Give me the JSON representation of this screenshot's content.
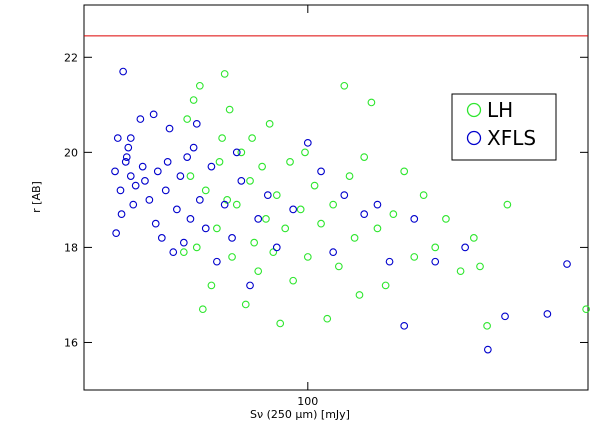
{
  "chart_data": {
    "type": "scatter",
    "x_label": "Sν (250 μm) [mJy]",
    "y_label": "r [AB]",
    "xlog": true,
    "xlim": [
      20,
      750
    ],
    "ylim": [
      15,
      23.1
    ],
    "xticks": [
      100
    ],
    "yticks": [
      16,
      18,
      20,
      22
    ],
    "reference_line": 22.45,
    "reference_line_color": "#dd0000",
    "legend": "upper right",
    "series": [
      {
        "name": "LH",
        "color": "#2ee62e",
        "x": [
          42,
          44,
          46,
          48,
          50,
          52,
          54,
          56,
          58,
          60,
          62,
          64,
          55,
          66,
          68,
          70,
          72,
          74,
          76,
          78,
          80,
          82,
          85,
          88,
          90,
          95,
          98,
          100,
          105,
          110,
          115,
          120,
          125,
          130,
          135,
          140,
          145,
          150,
          158,
          165,
          175,
          185,
          200,
          215,
          230,
          250,
          270,
          300,
          330,
          363,
          345,
          420,
          740,
          47,
          45,
          43,
          41,
          53,
          57,
          67
        ],
        "values": [
          20.7,
          21.1,
          21.4,
          19.2,
          17.2,
          18.4,
          20.3,
          19.0,
          17.8,
          18.9,
          20.0,
          16.8,
          21.65,
          19.4,
          18.1,
          17.5,
          19.7,
          18.6,
          20.6,
          17.9,
          19.1,
          16.4,
          18.4,
          19.8,
          17.3,
          18.8,
          20.0,
          17.8,
          19.3,
          18.5,
          16.5,
          18.9,
          17.6,
          21.4,
          19.5,
          18.2,
          17.0,
          19.9,
          21.05,
          18.4,
          17.2,
          18.7,
          19.6,
          17.8,
          19.1,
          18.0,
          18.6,
          17.5,
          18.2,
          16.35,
          17.6,
          18.9,
          16.7,
          16.7,
          18.0,
          19.5,
          17.9,
          19.8,
          20.9,
          20.3
        ]
      },
      {
        "name": "XFLS",
        "color": "#0000cc",
        "x": [
          25,
          25.5,
          26,
          26.5,
          27,
          27.5,
          28,
          28.5,
          29,
          25.2,
          26.2,
          27.2,
          30,
          31,
          32,
          33,
          34,
          35,
          36,
          37,
          38,
          39,
          40,
          41,
          42,
          43,
          44,
          46,
          48,
          50,
          52,
          55,
          58,
          62,
          66,
          70,
          75,
          80,
          90,
          100,
          110,
          120,
          130,
          150,
          165,
          180,
          200,
          215,
          250,
          310,
          365,
          413,
          560,
          645,
          28,
          30.5,
          33.5,
          36.5,
          45,
          60
        ],
        "values": [
          19.6,
          20.3,
          19.2,
          21.7,
          19.8,
          20.1,
          19.5,
          18.9,
          19.3,
          18.3,
          18.7,
          19.9,
          20.7,
          19.4,
          19.0,
          20.8,
          19.6,
          18.2,
          19.2,
          20.5,
          17.9,
          18.8,
          19.5,
          18.1,
          19.9,
          18.6,
          20.1,
          19.0,
          18.4,
          19.7,
          17.7,
          18.9,
          18.2,
          19.4,
          17.2,
          18.6,
          19.1,
          18.0,
          18.8,
          20.2,
          19.6,
          17.9,
          19.1,
          18.7,
          18.9,
          17.7,
          16.35,
          18.6,
          17.7,
          18.0,
          15.85,
          16.55,
          16.6,
          17.65,
          20.3,
          19.7,
          18.5,
          19.8,
          20.6,
          20.0
        ]
      }
    ]
  }
}
